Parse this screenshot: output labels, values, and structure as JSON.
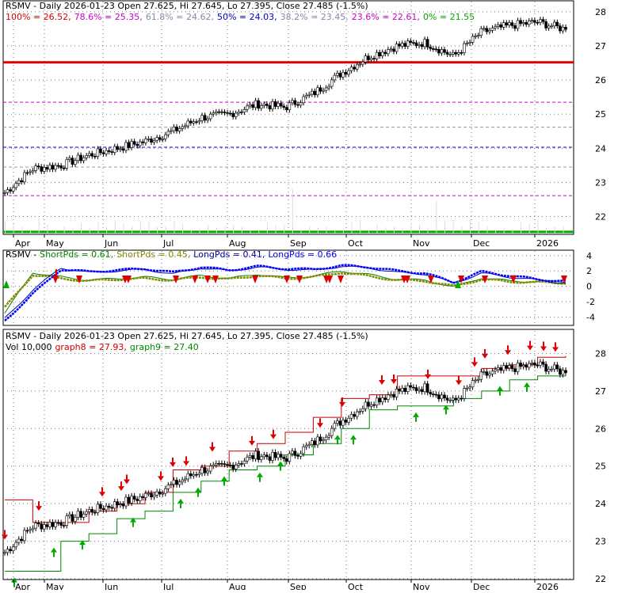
{
  "chart_data": [
    {
      "type": "line",
      "panel": "price-fibonacci",
      "header": {
        "title": "RSMV - Daily 2026-01-23 Open 27.625, Hi 27.645, Lo 27.395, Close 27.485 (-1.5%)",
        "fib_entries": [
          {
            "text": "100% = 26.52,",
            "color": "#dd0000"
          },
          {
            "text": "78.6% = 25.35,",
            "color": "#cc00cc"
          },
          {
            "text": "61.8% = 24.62,",
            "color": "#8888aa"
          },
          {
            "text": "50% = 24.03,",
            "color": "#0000cc"
          },
          {
            "text": "38.2% = 23.45,",
            "color": "#8888aa"
          },
          {
            "text": "23.6% = 22.61,",
            "color": "#cc00cc"
          },
          {
            "text": "0% = 21.55",
            "color": "#00aa00"
          }
        ]
      },
      "fib_levels": [
        {
          "label": "100%",
          "value": 26.52,
          "color": "#dd0000",
          "style": "solid"
        },
        {
          "label": "78.6%",
          "value": 25.35,
          "color": "#cc00cc",
          "style": "dash"
        },
        {
          "label": "61.8%",
          "value": 24.62,
          "color": "#999999",
          "style": "dash"
        },
        {
          "label": "50%",
          "value": 24.03,
          "color": "#0000cc",
          "style": "dash"
        },
        {
          "label": "38.2%",
          "value": 23.45,
          "color": "#999999",
          "style": "dash"
        },
        {
          "label": "23.6%",
          "value": 22.61,
          "color": "#cc00cc",
          "style": "dash"
        },
        {
          "label": "0%",
          "value": 21.55,
          "color": "#00aa00",
          "style": "solid"
        }
      ],
      "ylim": [
        21.5,
        28.3
      ],
      "yticks": [
        22,
        23,
        24,
        25,
        26,
        27,
        28
      ],
      "xlabels": [
        "Apr",
        "May",
        "Jun",
        "Jul",
        "Aug",
        "Sep",
        "Oct",
        "Nov",
        "Dec",
        "2026"
      ],
      "x": [
        "2025-03-31",
        "2025-04-15",
        "2025-04-30",
        "2025-05-15",
        "2025-05-30",
        "2025-06-15",
        "2025-06-30",
        "2025-07-15",
        "2025-07-31",
        "2025-08-15",
        "2025-08-29",
        "2025-09-15",
        "2025-09-30",
        "2025-10-15",
        "2025-10-31",
        "2025-11-14",
        "2025-11-28",
        "2025-12-15",
        "2025-12-31",
        "2026-01-15",
        "2026-01-23"
      ],
      "close": [
        22.7,
        23.4,
        23.5,
        23.8,
        24.0,
        24.2,
        24.5,
        24.9,
        25.0,
        25.3,
        25.2,
        25.6,
        26.2,
        26.7,
        27.0,
        27.1,
        26.7,
        27.4,
        27.6,
        27.7,
        27.485
      ]
    },
    {
      "type": "line",
      "panel": "period-oscillators",
      "header": {
        "ticker": "RSMV -",
        "entries": [
          {
            "text": "ShortPds = 0.61,",
            "color": "#008800"
          },
          {
            "text": "ShortPds = 0.45,",
            "color": "#888800"
          },
          {
            "text": "LongPds = 0.41,",
            "color": "#0000aa"
          },
          {
            "text": "LongPds = 0.66",
            "color": "#0000ff"
          }
        ]
      },
      "ylim": [
        -5,
        4.5
      ],
      "yticks": [
        4,
        2,
        0,
        -2,
        -4
      ],
      "series": [
        {
          "name": "ShortPds",
          "color": "#008800",
          "values": [
            -3.5,
            1.8,
            1.2,
            0.8,
            1.0,
            1.2,
            0.9,
            1.4,
            1.0,
            1.6,
            1.1,
            1.3,
            2.0,
            1.5,
            0.9,
            0.8,
            -0.1,
            1.1,
            0.7,
            0.6,
            0.61
          ]
        },
        {
          "name": "ShortPds",
          "color": "#888800",
          "values": [
            -2.8,
            1.5,
            1.0,
            0.7,
            0.9,
            1.0,
            0.8,
            1.2,
            0.9,
            1.4,
            1.0,
            1.2,
            1.8,
            1.3,
            0.8,
            0.7,
            0.0,
            0.9,
            0.6,
            0.5,
            0.45
          ]
        },
        {
          "name": "LongPds",
          "color": "#0000aa",
          "values": [
            -4.2,
            -0.5,
            2.4,
            1.8,
            2.0,
            2.2,
            1.6,
            2.4,
            2.0,
            2.5,
            2.2,
            2.1,
            2.6,
            2.4,
            1.8,
            1.6,
            0.4,
            1.7,
            1.2,
            0.8,
            0.41
          ]
        },
        {
          "name": "LongPds",
          "color": "#0000ff",
          "values": [
            -4.5,
            -1.0,
            2.2,
            1.9,
            2.1,
            2.3,
            1.8,
            2.5,
            2.1,
            2.6,
            2.3,
            2.2,
            2.7,
            2.5,
            2.0,
            1.7,
            0.5,
            1.9,
            1.4,
            0.9,
            0.66
          ]
        }
      ]
    },
    {
      "type": "line",
      "panel": "price-stops",
      "header": {
        "title": "RSMV - Daily 2026-01-23 Open 27.625, Hi 27.645, Lo 27.395, Close 27.485 (-1.5%)",
        "vol_text": "Vol 10,000",
        "graph8_text": "graph8 = 27.93,",
        "graph9_text": "graph9 = 27.40"
      },
      "ylim": [
        22,
        28.6
      ],
      "yticks": [
        22,
        23,
        24,
        25,
        26,
        27,
        28
      ],
      "xlabels": [
        "Apr",
        "May",
        "Jun",
        "Jul",
        "Aug",
        "Sep",
        "Oct",
        "Nov",
        "Dec",
        "2026"
      ],
      "series": [
        {
          "name": "graph8",
          "color": "#cc0000",
          "values": [
            24.1,
            23.5,
            23.5,
            23.8,
            24.0,
            24.3,
            24.9,
            25.0,
            25.4,
            25.6,
            25.9,
            26.3,
            26.8,
            26.9,
            27.4,
            27.4,
            27.4,
            27.6,
            27.7,
            27.9,
            27.93
          ]
        },
        {
          "name": "graph9",
          "color": "#008800",
          "values": [
            22.2,
            22.2,
            23.0,
            23.2,
            23.6,
            23.8,
            24.3,
            24.6,
            24.9,
            25.0,
            25.3,
            25.6,
            26.0,
            26.5,
            26.6,
            26.6,
            26.8,
            27.0,
            27.3,
            27.4,
            27.4
          ]
        }
      ]
    }
  ]
}
